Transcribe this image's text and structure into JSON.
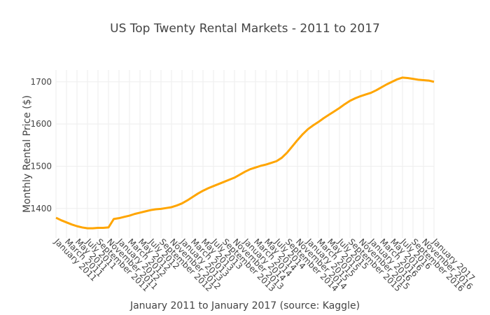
{
  "chart_data": {
    "type": "line",
    "title": "US Top Twenty Rental Markets - 2011 to 2017",
    "x_label": "January 2011 to January 2017 (source: Kaggle)",
    "y_label": "Monthly Rental Price ($)",
    "categories": [
      "January 2011",
      null,
      "March 2011",
      null,
      "May 2011",
      null,
      "July 2011",
      null,
      "September 2011",
      null,
      "November 2011",
      null,
      "January 2012",
      null,
      "March 2012",
      null,
      "May 2012",
      null,
      "July 2012",
      null,
      "September 2012",
      null,
      "November 2012",
      null,
      "January 2013",
      null,
      "March 2013",
      null,
      "May 2013",
      null,
      "July 2013",
      null,
      "September 2013",
      null,
      "November 2013",
      null,
      "January 2014",
      null,
      "March 2014",
      null,
      "May 2014",
      null,
      "July 2014",
      null,
      "September 2014",
      null,
      "November 2014",
      null,
      "January 2015",
      null,
      "March 2015",
      null,
      "May 2015",
      null,
      "July 2015",
      null,
      "September 2015",
      null,
      "November 2015",
      null,
      "January 2016",
      null,
      "March 2016",
      null,
      "May 2016",
      null,
      "July 2016",
      null,
      "September 2016",
      null,
      "November 2016",
      null,
      "January 2017"
    ],
    "series": [
      {
        "name": "Monthly Rental Price",
        "color": "#ffa500",
        "values": [
          1378,
          1372,
          1367,
          1362,
          1358,
          1355,
          1353,
          1353,
          1354,
          1354,
          1355,
          1375,
          1377,
          1380,
          1383,
          1387,
          1390,
          1393,
          1396,
          1398,
          1399,
          1401,
          1403,
          1407,
          1412,
          1419,
          1427,
          1435,
          1442,
          1448,
          1453,
          1458,
          1463,
          1468,
          1473,
          1480,
          1487,
          1493,
          1497,
          1501,
          1504,
          1508,
          1512,
          1520,
          1532,
          1547,
          1562,
          1576,
          1588,
          1597,
          1605,
          1614,
          1622,
          1630,
          1638,
          1647,
          1655,
          1661,
          1666,
          1670,
          1674,
          1680,
          1687,
          1694,
          1700,
          1706,
          1710,
          1709,
          1707,
          1705,
          1704,
          1703,
          1700
        ]
      }
    ],
    "ylim": [
      1330,
      1728
    ],
    "yticks": [
      1400,
      1500,
      1600,
      1700
    ],
    "grid": true
  }
}
